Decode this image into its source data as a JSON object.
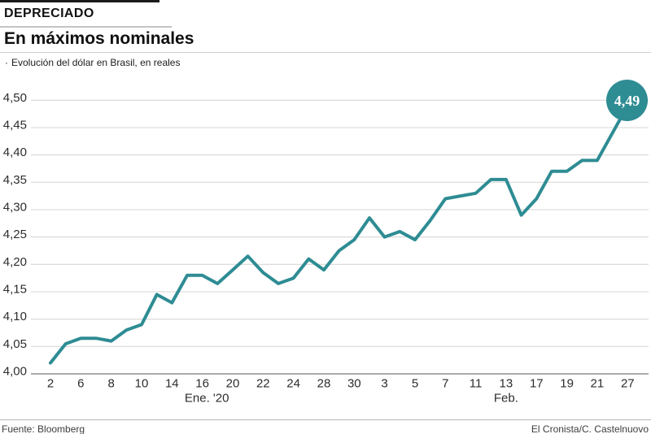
{
  "header": {
    "kicker": "DEPRECIADO",
    "title": "En máximos nominales",
    "subtitle_bullet": "·",
    "subtitle": "Evolución del dólar en Brasil, en reales"
  },
  "footer": {
    "source": "Fuente: Bloomberg",
    "credit": "El Cronista/C. Castelnuovo"
  },
  "colors": {
    "accent_teal": "#2E8C93",
    "gridline": "#d7d7d7",
    "axis_line": "#8f8f8f",
    "tick_text": "#2d2d2d",
    "badge_text": "#ffffff"
  },
  "chart_data": {
    "type": "line",
    "title": "En máximos nominales",
    "subtitle": "Evolución del dólar en Brasil, en reales",
    "series_name": "Dólar en Brasil (reales)",
    "x": [
      "2 Ene",
      "3 Ene",
      "6 Ene",
      "7 Ene",
      "8 Ene",
      "9 Ene",
      "10 Ene",
      "13 Ene",
      "14 Ene",
      "15 Ene",
      "16 Ene",
      "17 Ene",
      "20 Ene",
      "21 Ene",
      "22 Ene",
      "23 Ene",
      "24 Ene",
      "27 Ene",
      "28 Ene",
      "29 Ene",
      "30 Ene",
      "31 Ene",
      "3 Feb",
      "4 Feb",
      "5 Feb",
      "6 Feb",
      "7 Feb",
      "10 Feb",
      "11 Feb",
      "12 Feb",
      "13 Feb",
      "14 Feb",
      "17 Feb",
      "18 Feb",
      "19 Feb",
      "20 Feb",
      "21 Feb",
      "26 Feb",
      "27 Feb"
    ],
    "values": [
      4.02,
      4.055,
      4.065,
      4.065,
      4.06,
      4.08,
      4.09,
      4.145,
      4.13,
      4.18,
      4.18,
      4.165,
      4.19,
      4.215,
      4.185,
      4.165,
      4.175,
      4.21,
      4.19,
      4.225,
      4.245,
      4.285,
      4.25,
      4.26,
      4.245,
      4.28,
      4.32,
      4.325,
      4.33,
      4.355,
      4.355,
      4.29,
      4.32,
      4.37,
      4.37,
      4.39,
      4.39,
      4.44,
      4.49
    ],
    "x_tick_labels": [
      "2",
      "6",
      "8",
      "10",
      "14",
      "16",
      "20",
      "22",
      "24",
      "28",
      "30",
      "3",
      "5",
      "7",
      "11",
      "13",
      "17",
      "19",
      "21",
      "27"
    ],
    "x_tick_every": 2,
    "x_axis_groups": [
      {
        "label": "Ene. '20",
        "center_index": 10.3
      },
      {
        "label": "Feb.",
        "center_index": 30
      }
    ],
    "y_ticks": [
      {
        "label": "4,00",
        "value": 4.0
      },
      {
        "label": "4,05",
        "value": 4.05
      },
      {
        "label": "4,10",
        "value": 4.1
      },
      {
        "label": "4,15",
        "value": 4.15
      },
      {
        "label": "4,20",
        "value": 4.2
      },
      {
        "label": "4,25",
        "value": 4.25
      },
      {
        "label": "4,30",
        "value": 4.3
      },
      {
        "label": "4,35",
        "value": 4.35
      },
      {
        "label": "4,40",
        "value": 4.4
      },
      {
        "label": "4,45",
        "value": 4.45
      },
      {
        "label": "4,50",
        "value": 4.5
      }
    ],
    "ylim": [
      4.0,
      4.5
    ],
    "grid": true,
    "legend": false,
    "end_label": "4,49",
    "line_color": "#2E8C93"
  }
}
